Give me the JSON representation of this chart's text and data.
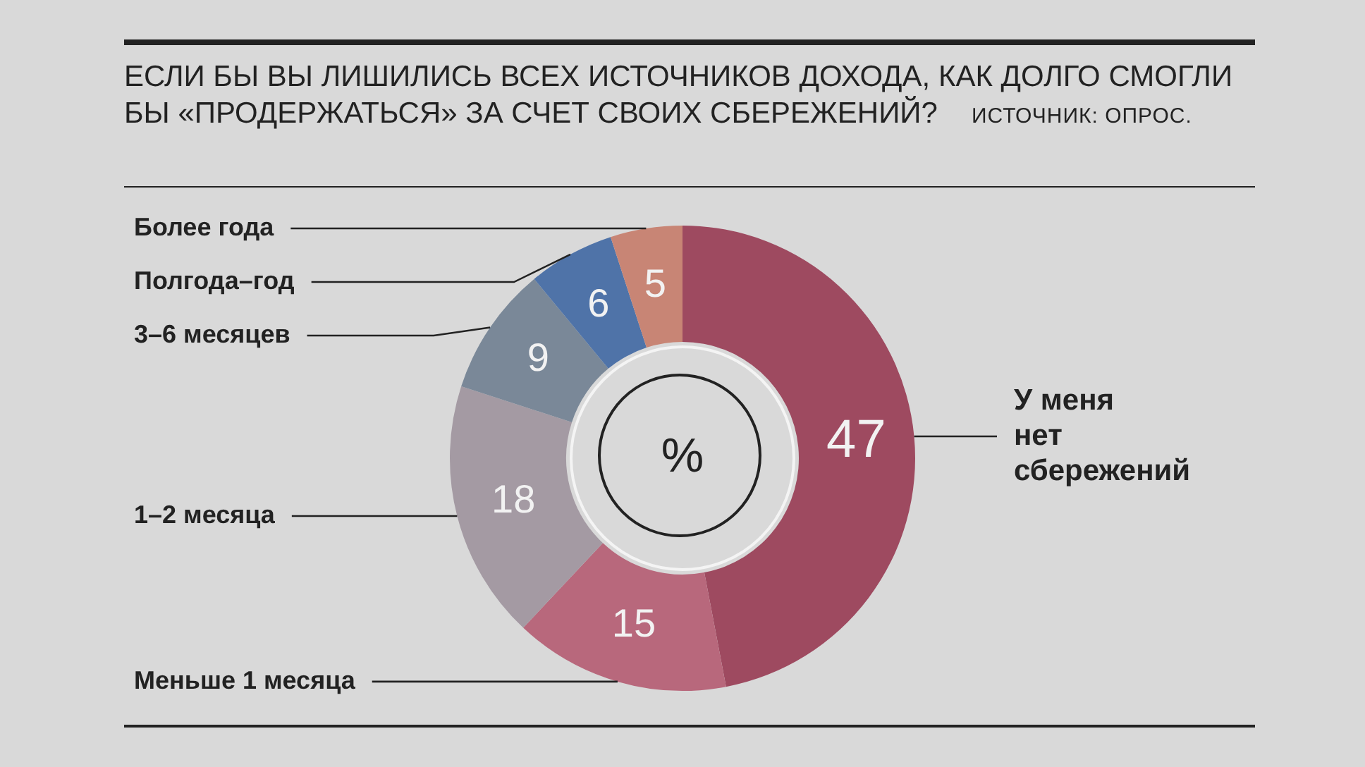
{
  "chart_data": {
    "type": "donut",
    "title": "ЕСЛИ БЫ ВЫ ЛИШИЛИСЬ ВСЕХ ИСТОЧНИКОВ ДОХОДА, КАК ДОЛГО СМОГЛИ БЫ «ПРОДЕРЖАТЬСЯ» ЗА СЧЕТ СВОИХ СБЕРЕЖЕНИЙ?",
    "annotations": [
      "ИСТОЧНИК: ОПРОС.",
      "%"
    ],
    "categories": [
      "У меня нет сбережений",
      "Меньше 1 месяца",
      "1–2 месяца",
      "3–6 месяцев",
      "Полгода–год",
      "Более года"
    ],
    "values": [
      47,
      15,
      18,
      9,
      6,
      5
    ],
    "colors": [
      "#9e4a60",
      "#b8687c",
      "#a49aa3",
      "#7a8898",
      "#4f73a8",
      "#c88575"
    ],
    "data_labels": true,
    "legend": false
  }
}
